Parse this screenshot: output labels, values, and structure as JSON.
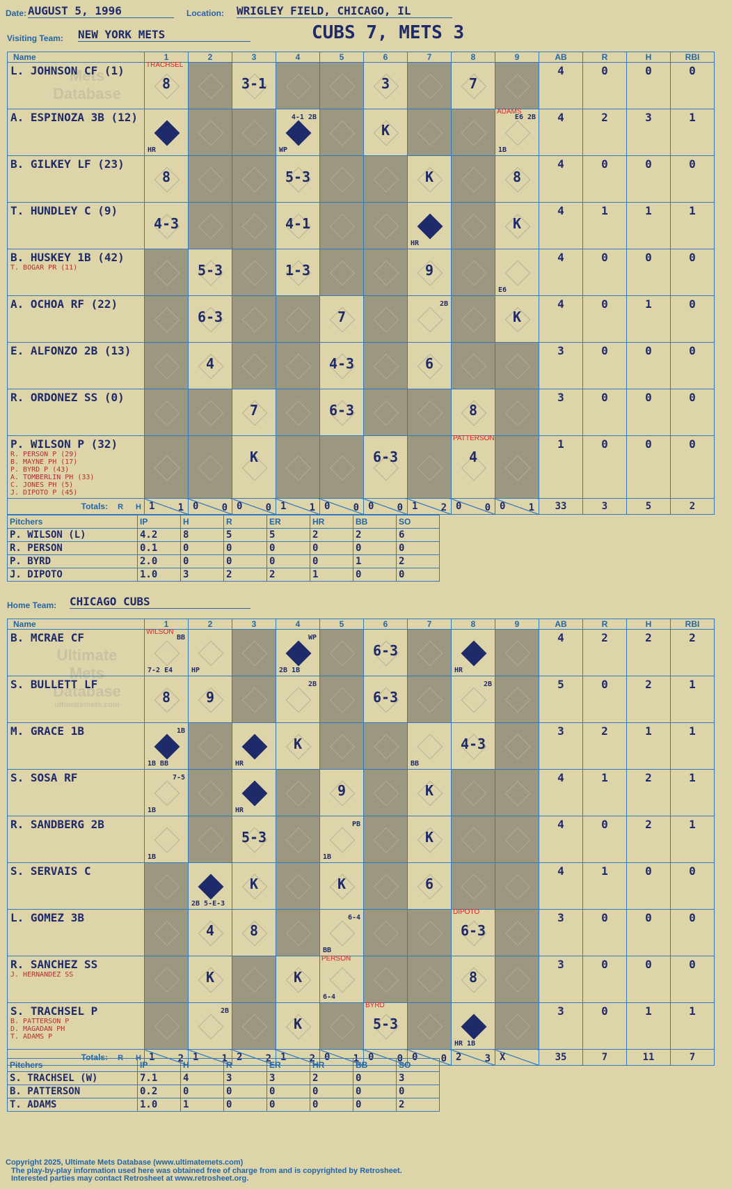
{
  "header": {
    "date_label": "Date:",
    "date": "AUGUST 5, 1996",
    "location_label": "Location:",
    "location": "WRIGLEY FIELD, CHICAGO, IL",
    "visiting_label": "Visiting Team:",
    "visiting_team": "NEW YORK METS",
    "home_label": "Home Team:",
    "home_team": "CHICAGO CUBS",
    "result": "CUBS 7, METS 3"
  },
  "watermark": {
    "line1": "Ultimate",
    "line2": "Mets",
    "line3": "Database",
    "url": "ultimatemets.com"
  },
  "columns": {
    "name": "Name",
    "innings": [
      "1",
      "2",
      "3",
      "4",
      "5",
      "6",
      "7",
      "8",
      "9"
    ],
    "stats": [
      "AB",
      "R",
      "H",
      "RBI"
    ],
    "totals": "Totals:",
    "rh_r": "R",
    "rh_h": "H"
  },
  "visitors": {
    "rows": [
      {
        "name": "L. JOHNSON CF (1)",
        "subs": [],
        "stats": [
          "4",
          "0",
          "0",
          "0"
        ]
      },
      {
        "name": "A. ESPINOZA 3B (12)",
        "subs": [],
        "stats": [
          "4",
          "2",
          "3",
          "1"
        ]
      },
      {
        "name": "B. GILKEY LF (23)",
        "subs": [],
        "stats": [
          "4",
          "0",
          "0",
          "0"
        ]
      },
      {
        "name": "T. HUNDLEY C (9)",
        "subs": [],
        "stats": [
          "4",
          "1",
          "1",
          "1"
        ]
      },
      {
        "name": "B. HUSKEY 1B (42)",
        "subs": [
          "T. BOGAR PR (11)"
        ],
        "stats": [
          "4",
          "0",
          "0",
          "0"
        ]
      },
      {
        "name": "A. OCHOA RF (22)",
        "subs": [],
        "stats": [
          "4",
          "0",
          "1",
          "0"
        ]
      },
      {
        "name": "E. ALFONZO 2B (13)",
        "subs": [],
        "stats": [
          "3",
          "0",
          "0",
          "0"
        ]
      },
      {
        "name": "R. ORDONEZ SS (0)",
        "subs": [],
        "stats": [
          "3",
          "0",
          "0",
          "0"
        ]
      },
      {
        "name": "P. WILSON P (32)",
        "subs": [
          "R. PERSON P (29)",
          "B. MAYNE PH (17)",
          "P. BYRD P (43)",
          "A. TOMBERLIN PH (33)",
          "C. JONES PH (5)",
          "J. DIPOTO P (45)"
        ],
        "stats": [
          "1",
          "0",
          "0",
          "0"
        ]
      }
    ],
    "totals_by_inning": [
      [
        "1",
        "1"
      ],
      [
        "0",
        "0"
      ],
      [
        "0",
        "0"
      ],
      [
        "1",
        "1"
      ],
      [
        "0",
        "0"
      ],
      [
        "0",
        "0"
      ],
      [
        "1",
        "2"
      ],
      [
        "0",
        "0"
      ],
      [
        "0",
        "1"
      ]
    ],
    "totals": [
      "33",
      "3",
      "5",
      "2"
    ]
  },
  "home": {
    "rows": [
      {
        "name": "B. MCRAE CF",
        "subs": [],
        "stats": [
          "4",
          "2",
          "2",
          "2"
        ]
      },
      {
        "name": "S. BULLETT LF",
        "subs": [],
        "stats": [
          "5",
          "0",
          "2",
          "1"
        ]
      },
      {
        "name": "M. GRACE 1B",
        "subs": [],
        "stats": [
          "3",
          "2",
          "1",
          "1"
        ]
      },
      {
        "name": "S. SOSA RF",
        "subs": [],
        "stats": [
          "4",
          "1",
          "2",
          "1"
        ]
      },
      {
        "name": "R. SANDBERG 2B",
        "subs": [],
        "stats": [
          "4",
          "0",
          "2",
          "1"
        ]
      },
      {
        "name": "S. SERVAIS C",
        "subs": [],
        "stats": [
          "4",
          "1",
          "0",
          "0"
        ]
      },
      {
        "name": "L. GOMEZ 3B",
        "subs": [],
        "stats": [
          "3",
          "0",
          "0",
          "0"
        ]
      },
      {
        "name": "R. SANCHEZ SS",
        "subs": [
          "J. HERNANDEZ SS"
        ],
        "stats": [
          "3",
          "0",
          "0",
          "0"
        ]
      },
      {
        "name": "S. TRACHSEL P",
        "subs": [
          "B. PATTERSON P",
          "D. MAGADAN PH",
          "T. ADAMS P"
        ],
        "stats": [
          "3",
          "0",
          "1",
          "1"
        ]
      }
    ],
    "totals_by_inning": [
      [
        "1",
        "2"
      ],
      [
        "1",
        "1"
      ],
      [
        "2",
        "2"
      ],
      [
        "1",
        "2"
      ],
      [
        "0",
        "1"
      ],
      [
        "0",
        "0"
      ],
      [
        "0",
        "0"
      ],
      [
        "2",
        "3"
      ],
      [
        "X",
        ""
      ]
    ],
    "totals": [
      "35",
      "7",
      "11",
      "7"
    ]
  },
  "pitchers_header": [
    "Pitchers",
    "IP",
    "H",
    "R",
    "ER",
    "HR",
    "BB",
    "SO"
  ],
  "visitor_pitchers": [
    [
      "P. WILSON (L)",
      "4.2",
      "8",
      "5",
      "5",
      "2",
      "2",
      "6"
    ],
    [
      "R. PERSON",
      "0.1",
      "0",
      "0",
      "0",
      "0",
      "0",
      "0"
    ],
    [
      "P. BYRD",
      "2.0",
      "0",
      "0",
      "0",
      "0",
      "1",
      "2"
    ],
    [
      "J. DIPOTO",
      "1.0",
      "3",
      "2",
      "2",
      "1",
      "0",
      "0"
    ]
  ],
  "home_pitchers": [
    [
      "S. TRACHSEL (W)",
      "7.1",
      "4",
      "3",
      "3",
      "2",
      "0",
      "3"
    ],
    [
      "B. PATTERSON",
      "0.2",
      "0",
      "0",
      "0",
      "0",
      "0",
      "0"
    ],
    [
      "T. ADAMS",
      "1.0",
      "1",
      "0",
      "0",
      "0",
      "0",
      "2"
    ]
  ],
  "footer": {
    "line1": "Copyright 2025, Ultimate Mets Database (www.ultimatemets.com)",
    "line2": "The play-by-play information used here was obtained free of charge from and is copyrighted by Retrosheet.",
    "line3": "Interested parties may contact Retrosheet at www.retrosheet.org."
  },
  "visitor_plays": [
    [
      {
        "t": "8",
        "p": "TRACHSEL"
      },
      {
        "t": ""
      },
      {
        "t": "3-1"
      },
      {
        "t": ""
      },
      {
        "t": ""
      },
      {
        "t": "3"
      },
      {
        "t": ""
      },
      {
        "t": "7"
      },
      {
        "t": ""
      }
    ],
    [
      {
        "t": "",
        "s": 1,
        "n": "HR"
      },
      {
        "t": ""
      },
      {
        "t": ""
      },
      {
        "t": "",
        "s": 1,
        "n": "WP",
        "n2": "4-1 2B"
      },
      {
        "t": ""
      },
      {
        "t": "K"
      },
      {
        "t": ""
      },
      {
        "t": ""
      },
      {
        "t": "",
        "n": "1B",
        "n2": "E6 2B",
        "p": "ADAMS"
      }
    ],
    [
      {
        "t": "8"
      },
      {
        "t": ""
      },
      {
        "t": ""
      },
      {
        "t": "5-3"
      },
      {
        "t": ""
      },
      {
        "t": ""
      },
      {
        "t": "K"
      },
      {
        "t": ""
      },
      {
        "t": "8"
      }
    ],
    [
      {
        "t": "4-3"
      },
      {
        "t": ""
      },
      {
        "t": ""
      },
      {
        "t": "4-1"
      },
      {
        "t": ""
      },
      {
        "t": ""
      },
      {
        "t": "",
        "s": 1,
        "n": "HR"
      },
      {
        "t": ""
      },
      {
        "t": "K"
      }
    ],
    [
      {
        "t": ""
      },
      {
        "t": "5-3"
      },
      {
        "t": ""
      },
      {
        "t": "1-3"
      },
      {
        "t": ""
      },
      {
        "t": ""
      },
      {
        "t": "9"
      },
      {
        "t": ""
      },
      {
        "t": "",
        "n": "E6"
      }
    ],
    [
      {
        "t": ""
      },
      {
        "t": "6-3"
      },
      {
        "t": ""
      },
      {
        "t": ""
      },
      {
        "t": "7"
      },
      {
        "t": ""
      },
      {
        "t": "",
        "n2": "2B"
      },
      {
        "t": ""
      },
      {
        "t": "K"
      }
    ],
    [
      {
        "t": ""
      },
      {
        "t": "4"
      },
      {
        "t": ""
      },
      {
        "t": ""
      },
      {
        "t": "4-3"
      },
      {
        "t": ""
      },
      {
        "t": "6"
      },
      {
        "t": ""
      },
      {
        "t": ""
      }
    ],
    [
      {
        "t": ""
      },
      {
        "t": ""
      },
      {
        "t": "7"
      },
      {
        "t": ""
      },
      {
        "t": "6-3"
      },
      {
        "t": ""
      },
      {
        "t": ""
      },
      {
        "t": "8"
      },
      {
        "t": ""
      }
    ],
    [
      {
        "t": ""
      },
      {
        "t": ""
      },
      {
        "t": "K"
      },
      {
        "t": ""
      },
      {
        "t": ""
      },
      {
        "t": "6-3"
      },
      {
        "t": ""
      },
      {
        "t": "4",
        "p": "PATTERSON"
      },
      {
        "t": ""
      }
    ]
  ],
  "home_plays": [
    [
      {
        "t": "",
        "n": "7-2 E4",
        "n2": "BB",
        "p": "WILSON"
      },
      {
        "t": "",
        "n": "HP"
      },
      {
        "t": ""
      },
      {
        "t": "",
        "s": 1,
        "n": "2B 1B",
        "n2": "WP"
      },
      {
        "t": ""
      },
      {
        "t": "6-3"
      },
      {
        "t": ""
      },
      {
        "t": "",
        "s": 1,
        "n": "HR"
      },
      {
        "t": ""
      }
    ],
    [
      {
        "t": "8"
      },
      {
        "t": "9"
      },
      {
        "t": ""
      },
      {
        "t": "",
        "n2": "2B"
      },
      {
        "t": ""
      },
      {
        "t": "6-3"
      },
      {
        "t": ""
      },
      {
        "t": "",
        "n2": "2B"
      },
      {
        "t": ""
      }
    ],
    [
      {
        "t": "",
        "s": 1,
        "n": "1B BB",
        "n2": "1B"
      },
      {
        "t": ""
      },
      {
        "t": "",
        "s": 1,
        "n": "HR"
      },
      {
        "t": "K"
      },
      {
        "t": ""
      },
      {
        "t": ""
      },
      {
        "t": "",
        "n": "BB"
      },
      {
        "t": "4-3"
      },
      {
        "t": ""
      }
    ],
    [
      {
        "t": "",
        "n": "1B",
        "n2": "7-5"
      },
      {
        "t": ""
      },
      {
        "t": "",
        "s": 1,
        "n": "HR"
      },
      {
        "t": ""
      },
      {
        "t": "9"
      },
      {
        "t": ""
      },
      {
        "t": "K"
      },
      {
        "t": ""
      },
      {
        "t": ""
      }
    ],
    [
      {
        "t": "",
        "n": "1B"
      },
      {
        "t": ""
      },
      {
        "t": "5-3"
      },
      {
        "t": ""
      },
      {
        "t": "",
        "n": "1B",
        "n2": "PB"
      },
      {
        "t": ""
      },
      {
        "t": "K"
      },
      {
        "t": ""
      },
      {
        "t": ""
      }
    ],
    [
      {
        "t": ""
      },
      {
        "t": "",
        "s": 1,
        "n": "2B 5-E-3"
      },
      {
        "t": "K"
      },
      {
        "t": ""
      },
      {
        "t": "K"
      },
      {
        "t": ""
      },
      {
        "t": "6"
      },
      {
        "t": ""
      },
      {
        "t": ""
      }
    ],
    [
      {
        "t": ""
      },
      {
        "t": "4"
      },
      {
        "t": "8"
      },
      {
        "t": ""
      },
      {
        "t": "",
        "n": "BB",
        "n2": "6-4"
      },
      {
        "t": ""
      },
      {
        "t": ""
      },
      {
        "t": "6-3",
        "p": "DIPOTO"
      },
      {
        "t": ""
      }
    ],
    [
      {
        "t": ""
      },
      {
        "t": "K"
      },
      {
        "t": ""
      },
      {
        "t": "K"
      },
      {
        "t": "",
        "n": "6-4",
        "p": "PERSON"
      },
      {
        "t": ""
      },
      {
        "t": ""
      },
      {
        "t": "8"
      },
      {
        "t": ""
      }
    ],
    [
      {
        "t": ""
      },
      {
        "t": "",
        "n2": "2B"
      },
      {
        "t": ""
      },
      {
        "t": "K"
      },
      {
        "t": ""
      },
      {
        "t": "5-3",
        "p": "BYRD"
      },
      {
        "t": ""
      },
      {
        "t": "",
        "s": 1,
        "n": "HR 1B"
      },
      {
        "t": ""
      }
    ]
  ]
}
